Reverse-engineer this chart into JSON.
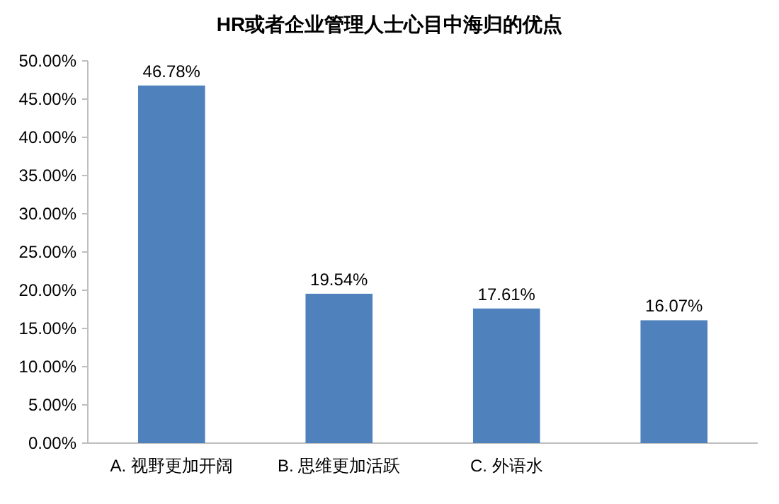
{
  "chart_data": {
    "type": "bar",
    "title": "HR或者企业管理人士心目中海归的优点",
    "categories": [
      "A. 视野更加开阔",
      "B. 思维更加活跃",
      "C. 外语水",
      null
    ],
    "values": [
      46.78,
      19.54,
      17.61,
      16.07
    ],
    "value_labels": [
      "46.78%",
      "19.54%",
      "17.61%",
      "16.07%"
    ],
    "color": "#4f81bd",
    "ylim": [
      0,
      50
    ],
    "yticks": [
      {
        "value": 0,
        "label": "0.00%"
      },
      {
        "value": 5,
        "label": "5.00%"
      },
      {
        "value": 10,
        "label": "10.00%"
      },
      {
        "value": 15,
        "label": "15.00%"
      },
      {
        "value": 20,
        "label": "20.00%"
      },
      {
        "value": 25,
        "label": "25.00%"
      },
      {
        "value": 30,
        "label": "30.00%"
      },
      {
        "value": 35,
        "label": "35.00%"
      },
      {
        "value": 40,
        "label": "40.00%"
      },
      {
        "value": 45,
        "label": "45.00%"
      },
      {
        "value": 50,
        "label": "50.00%"
      }
    ],
    "grid": false
  }
}
